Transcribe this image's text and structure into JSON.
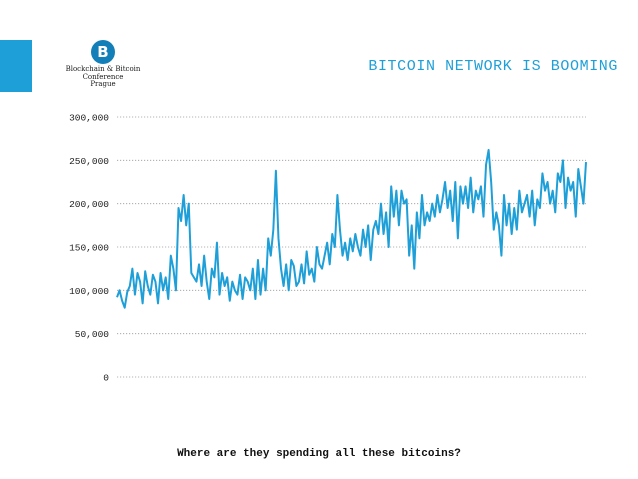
{
  "header": {
    "title": "BITCOIN NETWORK IS BOOMING",
    "logo": {
      "mark": "B",
      "lines": [
        "Blockchain & Bitcoin",
        "Conference",
        "Prague"
      ]
    }
  },
  "caption": "Where are they spending all these bitcoins?",
  "colors": {
    "accent": "#1e9fd8",
    "line": "#1e9fd8",
    "grid": "#9a9a9a"
  },
  "chart_data": {
    "type": "line",
    "title": "",
    "xlabel": "",
    "ylabel": "",
    "ylim": [
      0,
      300000
    ],
    "yticks": [
      0,
      50000,
      100000,
      150000,
      200000,
      250000,
      300000
    ],
    "ytick_labels": [
      "0",
      "50,000",
      "100,000",
      "150,000",
      "200,000",
      "250,000",
      "300,000"
    ],
    "grid": "horizontal dotted",
    "series": [
      {
        "values": [
          92000,
          100000,
          88000,
          80000,
          98000,
          105000,
          125000,
          95000,
          120000,
          110000,
          85000,
          122000,
          105000,
          95000,
          118000,
          110000,
          85000,
          120000,
          100000,
          115000,
          90000,
          140000,
          125000,
          100000,
          195000,
          180000,
          210000,
          175000,
          200000,
          120000,
          115000,
          110000,
          130000,
          105000,
          140000,
          110000,
          90000,
          125000,
          115000,
          155000,
          95000,
          120000,
          105000,
          115000,
          88000,
          110000,
          100000,
          95000,
          118000,
          90000,
          115000,
          110000,
          100000,
          125000,
          90000,
          135000,
          95000,
          125000,
          100000,
          160000,
          140000,
          170000,
          238000,
          160000,
          125000,
          105000,
          130000,
          100000,
          135000,
          128000,
          105000,
          110000,
          130000,
          108000,
          145000,
          118000,
          125000,
          110000,
          150000,
          130000,
          125000,
          140000,
          155000,
          130000,
          165000,
          150000,
          210000,
          170000,
          140000,
          155000,
          135000,
          160000,
          145000,
          165000,
          150000,
          140000,
          170000,
          150000,
          175000,
          135000,
          170000,
          180000,
          165000,
          200000,
          165000,
          190000,
          150000,
          220000,
          185000,
          215000,
          175000,
          215000,
          200000,
          205000,
          140000,
          175000,
          125000,
          190000,
          160000,
          210000,
          175000,
          190000,
          180000,
          200000,
          185000,
          210000,
          190000,
          205000,
          225000,
          195000,
          215000,
          180000,
          225000,
          160000,
          220000,
          200000,
          220000,
          195000,
          230000,
          190000,
          215000,
          205000,
          220000,
          185000,
          245000,
          262000,
          225000,
          170000,
          190000,
          175000,
          140000,
          210000,
          175000,
          200000,
          165000,
          195000,
          170000,
          215000,
          190000,
          200000,
          210000,
          185000,
          215000,
          175000,
          205000,
          195000,
          235000,
          215000,
          225000,
          200000,
          215000,
          190000,
          235000,
          225000,
          250000,
          195000,
          230000,
          215000,
          225000,
          185000,
          240000,
          220000,
          200000,
          248000
        ]
      }
    ]
  }
}
